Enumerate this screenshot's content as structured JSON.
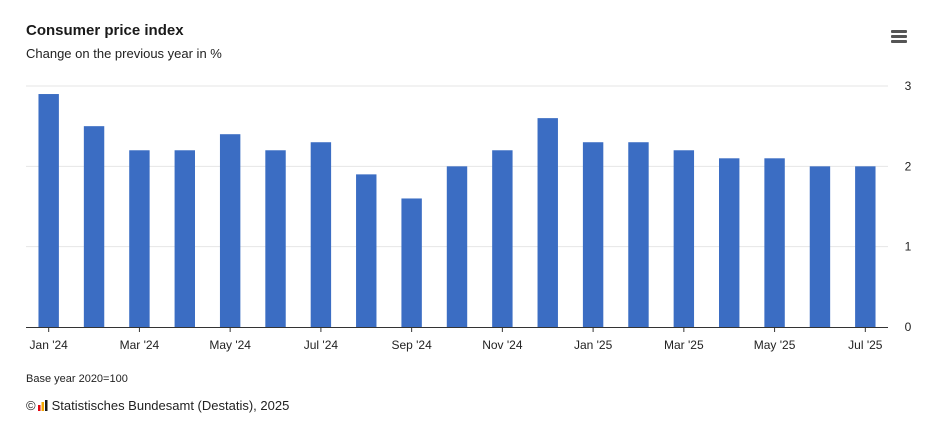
{
  "header": {
    "title": "Consumer price index",
    "subtitle": "Change on the previous year in %"
  },
  "menu": {
    "icon": "hamburger-menu-icon"
  },
  "footer": {
    "note": "Base year 2020=100",
    "copyright_symbol": "©",
    "source": "Statistisches Bundesamt (Destatis), 2025",
    "logo_colors": [
      "#e30613",
      "#f5a800",
      "#1a1a1a"
    ]
  },
  "chart_data": {
    "type": "bar",
    "title": "Consumer price index",
    "subtitle": "Change on the previous year in %",
    "categories": [
      "Jan '24",
      "Feb '24",
      "Mar '24",
      "Apr '24",
      "May '24",
      "Jun '24",
      "Jul '24",
      "Aug '24",
      "Sep '24",
      "Oct '24",
      "Nov '24",
      "Dec '24",
      "Jan '25",
      "Feb '25",
      "Mar '25",
      "Apr '25",
      "May '25",
      "Jun '25",
      "Jul '25"
    ],
    "tick_labels": [
      "Jan '24",
      "Mar '24",
      "May '24",
      "Jul '24",
      "Sep '24",
      "Nov '24",
      "Jan '25",
      "Mar '25",
      "May '25",
      "Jul '25"
    ],
    "values": [
      2.9,
      2.5,
      2.2,
      2.2,
      2.4,
      2.2,
      2.3,
      1.9,
      1.6,
      2.0,
      2.2,
      2.6,
      2.3,
      2.3,
      2.2,
      2.1,
      2.1,
      2.0,
      2.0
    ],
    "ylim": [
      0,
      3
    ],
    "yticks": [
      0,
      1,
      2,
      3
    ],
    "y_axis_side": "right",
    "grid": true,
    "bar_color": "#3b6dc3",
    "grid_color": "#e6e6e6",
    "axis_color": "#333333"
  }
}
